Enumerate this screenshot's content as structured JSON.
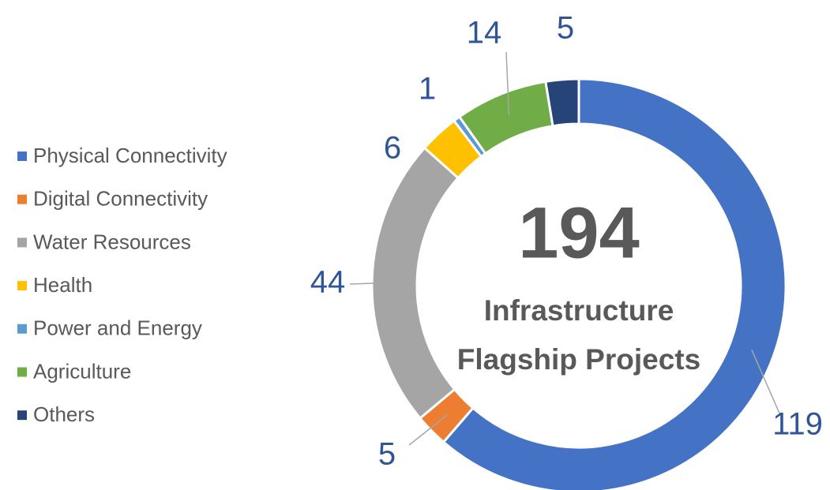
{
  "chart_data": {
    "type": "donut",
    "categories": [
      "Physical Connectivity",
      "Digital Connectivity",
      "Water Resources",
      "Health",
      "Power and Energy",
      "Agriculture",
      "Others"
    ],
    "values": [
      119,
      5,
      44,
      6,
      1,
      14,
      5
    ],
    "colors": [
      "#4472c4",
      "#ed7d31",
      "#a5a5a5",
      "#ffc000",
      "#5b9bd5",
      "#70ad47",
      "#264478"
    ],
    "center_value": 194,
    "center_label": [
      "Infrastructure",
      "Flagship Projects"
    ],
    "legend": "left"
  }
}
